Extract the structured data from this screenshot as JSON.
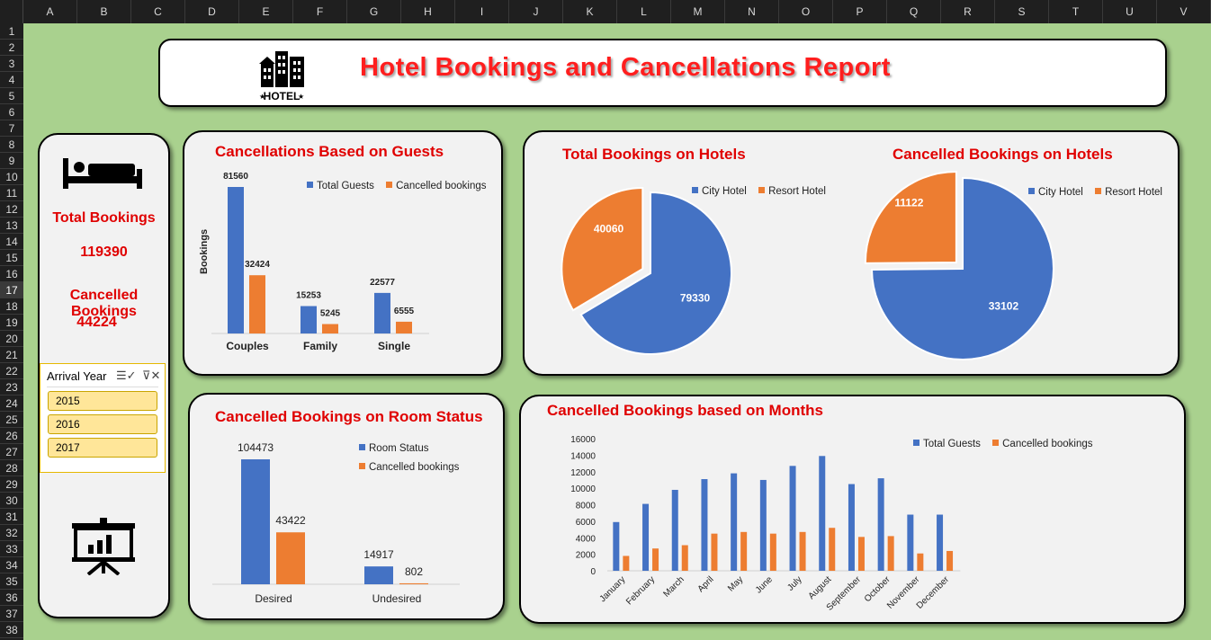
{
  "spreadsheet": {
    "columns": [
      "A",
      "B",
      "C",
      "D",
      "E",
      "F",
      "G",
      "H",
      "I",
      "J",
      "K",
      "L",
      "M",
      "N",
      "O",
      "P",
      "Q",
      "R",
      "S",
      "T",
      "U",
      "V"
    ],
    "rows": [
      "1",
      "2",
      "3",
      "4",
      "5",
      "6",
      "7",
      "8",
      "9",
      "10",
      "11",
      "12",
      "13",
      "14",
      "15",
      "16",
      "17",
      "18",
      "19",
      "20",
      "21",
      "22",
      "23",
      "24",
      "25",
      "26",
      "27",
      "28",
      "29",
      "30",
      "31",
      "32",
      "33",
      "34",
      "35",
      "36",
      "37",
      "38"
    ],
    "selected_row": "17"
  },
  "colors": {
    "blue": "#4472c4",
    "orange": "#ed7d31",
    "title_red": "#e00000",
    "background": "#a9d18e"
  },
  "header": {
    "title": "Hotel Bookings and Cancellations Report",
    "logo_text": "HOTEL",
    "logo_icon": "hotel-building-icon"
  },
  "kpis": {
    "total_bookings_label": "Total Bookings",
    "total_bookings_value": "119390",
    "cancelled_bookings_label": "Cancelled Bookings",
    "cancelled_bookings_value": "44224",
    "bed_icon": "bed-icon",
    "presentation_icon": "presentation-chart-icon"
  },
  "slicer": {
    "title": "Arrival Year",
    "items": [
      "2015",
      "2016",
      "2017"
    ],
    "multi_select_icon": "multi-select-icon",
    "clear_filter_icon": "clear-filter-icon"
  },
  "charts": {
    "guests": {
      "title": "Cancellations Based on Guests",
      "legend": [
        "Total Guests",
        "Cancelled bookings"
      ],
      "ylabel": "Bookings"
    },
    "total_hotels": {
      "title": "Total Bookings on Hotels",
      "legend": [
        "City Hotel",
        "Resort Hotel"
      ]
    },
    "cancelled_hotels": {
      "title": "Cancelled Bookings on Hotels",
      "legend": [
        "City Hotel",
        "Resort Hotel"
      ]
    },
    "room_status": {
      "title": "Cancelled Bookings on Room Status",
      "legend": [
        "Room Status",
        "Cancelled bookings"
      ]
    },
    "months": {
      "title": "Cancelled Bookings based on Months",
      "legend": [
        "Total Guests",
        "Cancelled bookings"
      ]
    }
  },
  "chart_data": [
    {
      "type": "bar",
      "title": "Cancellations Based on Guests",
      "ylabel": "Bookings",
      "categories": [
        "Couples",
        "Family",
        "Single"
      ],
      "series": [
        {
          "name": "Total Guests",
          "values": [
            81560,
            15253,
            22577
          ]
        },
        {
          "name": "Cancelled bookings",
          "values": [
            32424,
            5245,
            6555
          ]
        }
      ]
    },
    {
      "type": "pie",
      "title": "Total Bookings on Hotels",
      "categories": [
        "City Hotel",
        "Resort Hotel"
      ],
      "values": [
        79330,
        40060
      ]
    },
    {
      "type": "pie",
      "title": "Cancelled Bookings on Hotels",
      "categories": [
        "City Hotel",
        "Resort Hotel"
      ],
      "values": [
        33102,
        11122
      ]
    },
    {
      "type": "bar",
      "title": "Cancelled Bookings on Room Status",
      "categories": [
        "Desired",
        "Undesired"
      ],
      "series": [
        {
          "name": "Room Status",
          "values": [
            104473,
            14917
          ]
        },
        {
          "name": "Cancelled bookings",
          "values": [
            43422,
            802
          ]
        }
      ]
    },
    {
      "type": "bar",
      "title": "Cancelled Bookings based on Months",
      "categories": [
        "January",
        "February",
        "March",
        "April",
        "May",
        "June",
        "July",
        "August",
        "September",
        "October",
        "November",
        "December"
      ],
      "ylim": [
        0,
        16000
      ],
      "yticks": [
        "0",
        "2000",
        "4000",
        "6000",
        "8000",
        "10000",
        "12000",
        "14000",
        "16000"
      ],
      "series": [
        {
          "name": "Total Guests",
          "values": [
            5900,
            8100,
            9800,
            11100,
            11800,
            11000,
            12700,
            13900,
            10500,
            11200,
            6800,
            6800
          ]
        },
        {
          "name": "Cancelled bookings",
          "values": [
            1800,
            2700,
            3100,
            4500,
            4700,
            4500,
            4700,
            5200,
            4100,
            4200,
            2100,
            2400
          ]
        }
      ]
    }
  ]
}
